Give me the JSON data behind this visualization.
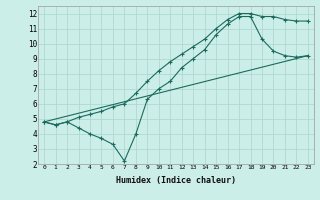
{
  "xlabel": "Humidex (Indice chaleur)",
  "background_color": "#cceee8",
  "grid_color": "#aad4ce",
  "line_color": "#1a6b5e",
  "xlim": [
    -0.5,
    23.5
  ],
  "ylim": [
    2,
    12.5
  ],
  "xticks": [
    0,
    1,
    2,
    3,
    4,
    5,
    6,
    7,
    8,
    9,
    10,
    11,
    12,
    13,
    14,
    15,
    16,
    17,
    18,
    19,
    20,
    21,
    22,
    23
  ],
  "yticks": [
    2,
    3,
    4,
    5,
    6,
    7,
    8,
    9,
    10,
    11,
    12
  ],
  "line1_x": [
    0,
    1,
    2,
    3,
    4,
    5,
    6,
    7,
    8,
    9,
    10,
    11,
    12,
    13,
    14,
    15,
    16,
    17,
    18,
    19,
    20,
    21,
    22,
    23
  ],
  "line1_y": [
    4.8,
    4.6,
    4.8,
    4.4,
    4.0,
    3.7,
    3.3,
    2.2,
    4.0,
    6.3,
    7.0,
    7.5,
    8.4,
    9.0,
    9.6,
    10.6,
    11.3,
    11.8,
    11.8,
    10.3,
    9.5,
    9.2,
    9.1,
    9.2
  ],
  "line1_marker_x": [
    0,
    1,
    3,
    4,
    5,
    6,
    7,
    8,
    9,
    10,
    11,
    12,
    13,
    14,
    15,
    16,
    17,
    18,
    19,
    20,
    21,
    22,
    23
  ],
  "line2_x": [
    0,
    23
  ],
  "line2_y": [
    4.8,
    9.2
  ],
  "line3_x": [
    0,
    1,
    2,
    3,
    4,
    5,
    6,
    7,
    8,
    9,
    10,
    11,
    12,
    13,
    14,
    15,
    16,
    17,
    18,
    19,
    20,
    21,
    22,
    23
  ],
  "line3_y": [
    4.8,
    4.6,
    4.8,
    5.1,
    5.3,
    5.5,
    5.8,
    6.0,
    6.7,
    7.5,
    8.2,
    8.8,
    9.3,
    9.8,
    10.3,
    11.0,
    11.6,
    12.0,
    12.0,
    11.8,
    11.8,
    11.6,
    11.5,
    11.5
  ],
  "line3_marker_x": [
    0,
    1,
    8,
    9,
    10,
    11,
    12,
    13,
    14,
    15,
    16,
    17,
    18,
    19,
    20,
    21,
    22,
    23
  ]
}
